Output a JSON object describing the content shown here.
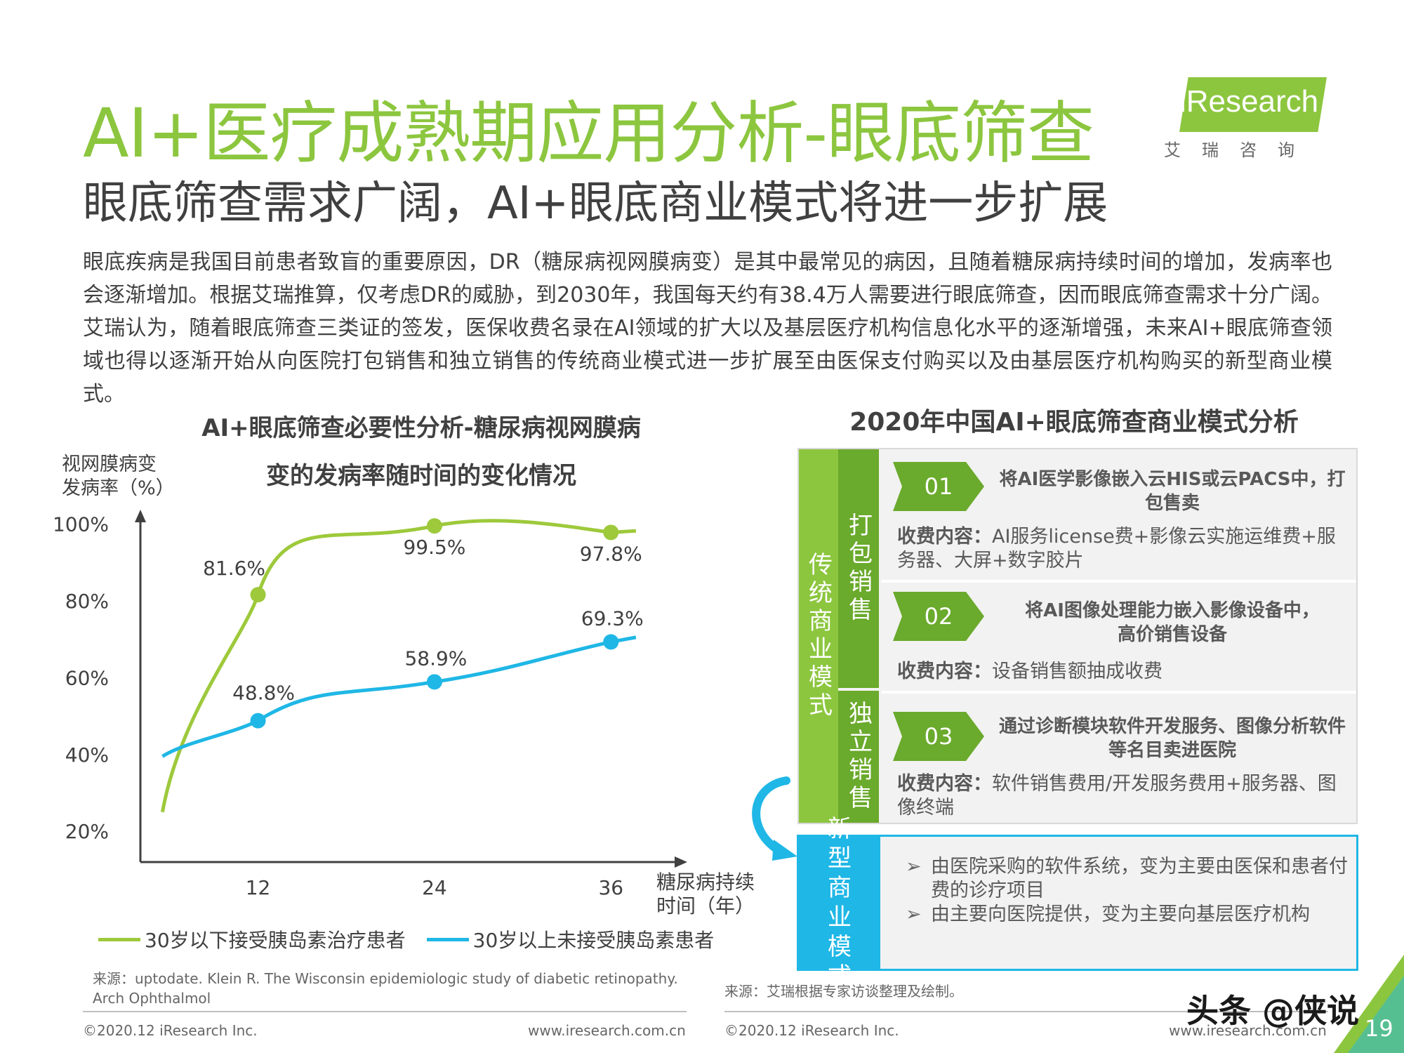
{
  "header": {
    "title": "AI+医疗成熟期应用分析-眼底筛查",
    "subtitle": "眼底筛查需求广阔，AI+眼底商业模式将进一步扩展"
  },
  "logo": {
    "name": "iResearch",
    "sub": "艾瑞咨询"
  },
  "body_text": "眼底疾病是我国目前患者致盲的重要原因，DR（糖尿病视网膜病变）是其中最常见的病因，且随着糖尿病持续时间的增加，发病率也会逐渐增加。根据艾瑞推算，仅考虑DR的威胁，到2030年，我国每天约有38.4万人需要进行眼底筛查，因而眼底筛查需求十分广阔。艾瑞认为，随着眼底筛查三类证的签发，医保收费名录在AI领域的扩大以及基层医疗机构信息化水平的逐渐增强，未来AI+眼底筛查领域也得以逐渐开始从向医院打包销售和独立销售的传统商业模式进一步扩展至由医保支付购买以及由基层医疗机构购买的新型商业模式。",
  "left_chart": {
    "title_line1": "AI+眼底筛查必要性分析-糖尿病视网膜病",
    "title_line2": "变的发病率随时间的变化情况",
    "y_axis_label_1": "视网膜病变",
    "y_axis_label_2": "发病率（%）",
    "x_axis_label_1": "糖尿病持续",
    "x_axis_label_2": "时间（年）",
    "source": "来源：uptodate. Klein R. The Wisconsin epidemiologic study of diabetic retinopathy. Arch Ophthalmol",
    "footer_left": "©2020.12 iResearch Inc.",
    "footer_right": "www.iresearch.com.cn"
  },
  "chart_data": {
    "type": "line",
    "y_ticks": [
      "100%",
      "80%",
      "60%",
      "40%",
      "20%"
    ],
    "y_tick_values": [
      100,
      80,
      60,
      40,
      20
    ],
    "x_ticks": [
      "12",
      "24",
      "36"
    ],
    "x_tick_values": [
      12,
      24,
      36
    ],
    "ylim": [
      12,
      103
    ],
    "xlim": [
      4,
      41
    ],
    "legend_position": "bottom",
    "series": [
      {
        "name": "30岁以下接受胰岛素治疗患者",
        "color": "#9dc93b",
        "x": [
          12,
          24,
          36
        ],
        "y": [
          81.6,
          99.5,
          97.8
        ],
        "labels": [
          "81.6%",
          "99.5%",
          "97.8%"
        ]
      },
      {
        "name": "30岁以上未接受胰岛素患者",
        "color": "#1fb7e6",
        "x": [
          12,
          24,
          36
        ],
        "y": [
          48.8,
          58.9,
          69.3
        ],
        "labels": [
          "48.8%",
          "58.9%",
          "69.3%"
        ]
      }
    ]
  },
  "right_panel": {
    "title": "2020年中国AI+眼底筛查商业模式分析",
    "traditional_label": "传统商业模式",
    "bundle_label": "打包销售",
    "standalone_label": "独立销售",
    "new_label": "新型商业模式",
    "rows": [
      {
        "num": "01",
        "title": "将AI医学影像嵌入云HIS或云PACS中，打包售卖",
        "fee_label": "收费内容：",
        "fee_text": "AI服务license费+影像云实施运维费+服务器、大屏+数字胶片"
      },
      {
        "num": "02",
        "title": "将AI图像处理能力嵌入影像设备中，高价销售设备",
        "fee_label": "收费内容：",
        "fee_text": "设备销售额抽成收费"
      },
      {
        "num": "03",
        "title": "通过诊断模块软件开发服务、图像分析软件等名目卖进医院",
        "fee_label": "收费内容：",
        "fee_text": "软件销售费用/开发服务费用+服务器、图像终端"
      }
    ],
    "new_items": [
      "由医院采购的软件系统，变为主要由医保和患者付费的诊疗项目",
      "由主要向医院提供，变为主要向基层医疗机构"
    ],
    "source": "来源：艾瑞根据专家访谈整理及绘制。",
    "footer_left": "©2020.12 iResearch Inc.",
    "footer_right": "www.iresearch.com.cn"
  },
  "page_number": "19",
  "watermark": "头条 @侠说"
}
